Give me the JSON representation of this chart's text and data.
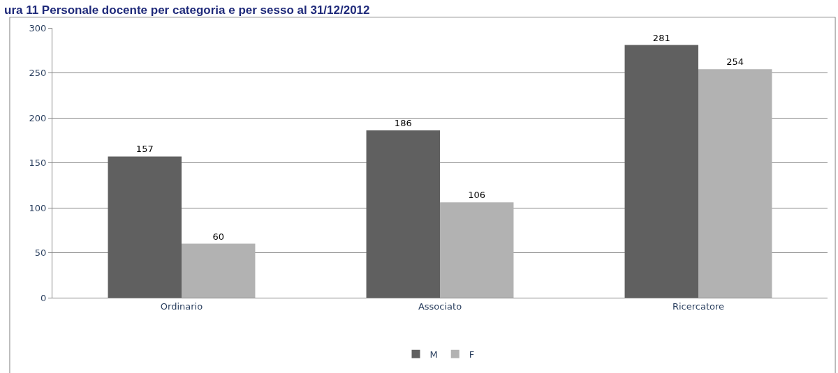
{
  "chart_data": {
    "type": "bar",
    "title": "ura 11 Personale docente per categoria e per sesso al 31/12/2012",
    "categories": [
      "Ordinario",
      "Associato",
      "Ricercatore"
    ],
    "series": [
      {
        "name": "M",
        "color": "#606060",
        "values": [
          157,
          186,
          281
        ]
      },
      {
        "name": "F",
        "color": "#b2b2b2",
        "values": [
          60,
          106,
          254
        ]
      }
    ],
    "ylim": [
      0,
      300
    ],
    "yticks": [
      0,
      50,
      100,
      150,
      200,
      250,
      300
    ],
    "grid": "y",
    "legend": "bottom",
    "data_labels": true
  }
}
